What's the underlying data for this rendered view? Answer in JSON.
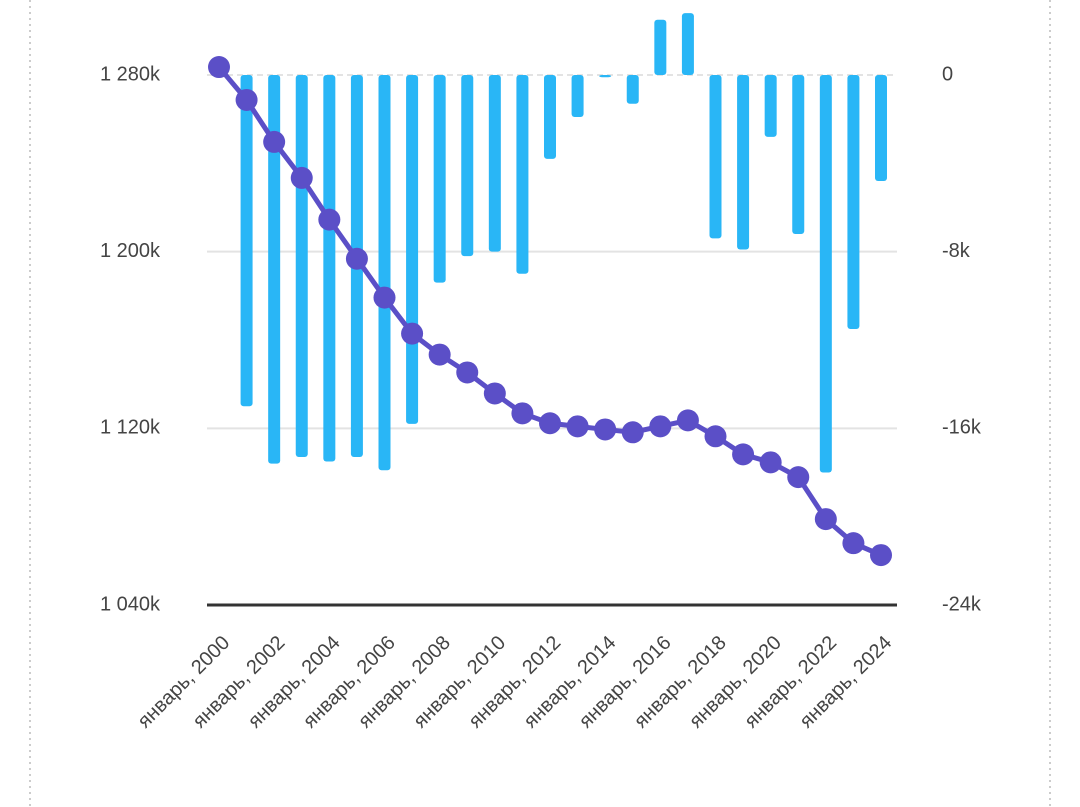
{
  "chart_data": {
    "type": "combo",
    "categories": [
      "январь, 2000",
      null,
      "январь, 2002",
      null,
      "январь, 2004",
      null,
      "январь, 2006",
      null,
      "январь, 2008",
      null,
      "январь, 2010",
      null,
      "январь, 2012",
      null,
      "январь, 2014",
      null,
      "январь, 2016",
      null,
      "январь, 2018",
      null,
      "январь, 2020",
      null,
      "январь, 2022",
      null,
      "январь, 2024"
    ],
    "series": [
      {
        "type": "bar",
        "axis": "y2",
        "color": "#29b6f6",
        "values": [
          null,
          -15.0,
          -17.6,
          -17.3,
          -17.5,
          -17.3,
          -17.9,
          -15.8,
          -9.4,
          -8.2,
          -8.0,
          -9.0,
          -3.8,
          -1.9,
          -0.1,
          -1.3,
          2.5,
          2.8,
          -7.4,
          -7.9,
          -2.8,
          -7.2,
          -18.0,
          -11.5,
          -4.8
        ]
      },
      {
        "type": "line",
        "axis": "y",
        "color": "#5b4fc7",
        "values": [
          1283.6,
          1268.7,
          1249.7,
          1233.4,
          1214.5,
          1196.8,
          1179.2,
          1162.9,
          1153.4,
          1145.3,
          1135.8,
          1126.8,
          1122.3,
          1120.9,
          1119.5,
          1118.2,
          1120.9,
          1123.6,
          1116.4,
          1108.2,
          1104.6,
          1097.9,
          1078.9,
          1068.0,
          1062.6
        ]
      }
    ],
    "ylim": [
      1040,
      1280
    ],
    "yticks": [
      {
        "value": 1040,
        "label": "1 040k"
      },
      {
        "value": 1120,
        "label": "1 120k"
      },
      {
        "value": 1200,
        "label": "1 200k"
      },
      {
        "value": 1280,
        "label": "1 280k"
      }
    ],
    "y2lim": [
      -24,
      0
    ],
    "y2ticks": [
      {
        "value": -24,
        "label": "-24k"
      },
      {
        "value": -16,
        "label": "-16k"
      },
      {
        "value": -8,
        "label": "-8k"
      },
      {
        "value": 0,
        "label": "0"
      }
    ],
    "grid": true
  }
}
